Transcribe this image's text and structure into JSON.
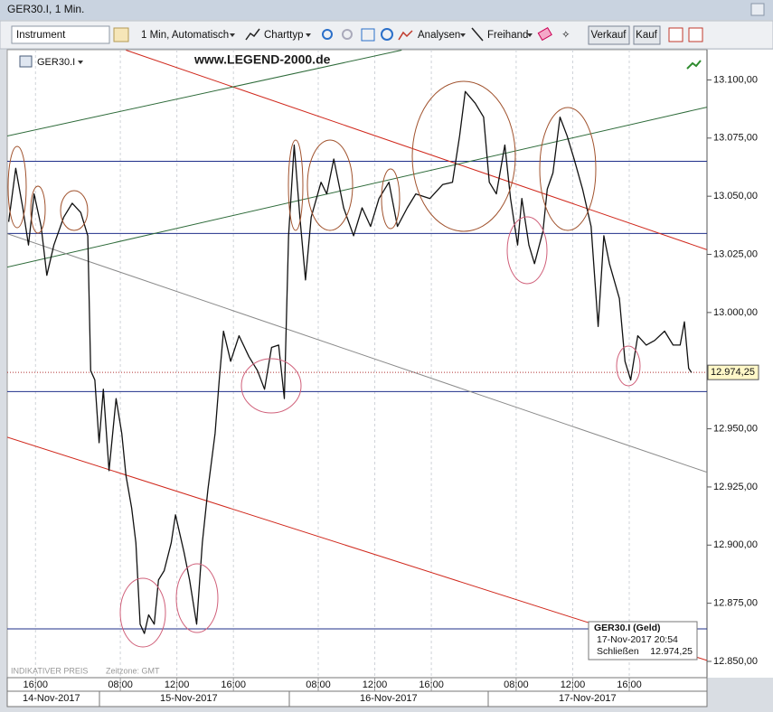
{
  "window_title": "GER30.I, 1 Min.",
  "toolbar": {
    "instrument": "Instrument",
    "interval": "1 Min,  Automatisch",
    "chart_type": "Charttyp",
    "analyses": "Analysen",
    "freehand": "Freihand",
    "sell": "Verkauf",
    "buy": "Kauf"
  },
  "chart_data": {
    "type": "line",
    "watermark": "www.LEGEND-2000.de",
    "footer_left": "INDIKATIVER PREIS",
    "timezone": "Zeitzone: GMT",
    "x": [
      6.1,
      6.6,
      7.1,
      7.5,
      7.9,
      8.4,
      8.8,
      9.3,
      10.0,
      10.6,
      11.2,
      11.7,
      11.9,
      12.2,
      12.5,
      12.8,
      13.2,
      13.7,
      14.1,
      14.4,
      14.8,
      15.1,
      15.4,
      15.7,
      16.0,
      16.4,
      16.7,
      17.1,
      17.6,
      17.9,
      18.5,
      18.9,
      19.4,
      19.8,
      20.2,
      20.7,
      21.0,
      21.3,
      21.8,
      22.4,
      23.1,
      23.7,
      24.2,
      24.7,
      25.2,
      25.6,
      25.9,
      26.3,
      26.7,
      27.1,
      27.5,
      28.2,
      28.6,
      29.1,
      29.8,
      30.5,
      31.1,
      31.7,
      32.3,
      33.0,
      33.6,
      34.3,
      34.9,
      35.9,
      36.8,
      37.5,
      38.0,
      38.4,
      39.1,
      39.7,
      40.1,
      40.6,
      41.2,
      41.6,
      42.1,
      42.4,
      42.9,
      43.3,
      43.9,
      44.2,
      44.6,
      45.1,
      45.6,
      46.1,
      46.7,
      47.3,
      47.8,
      48.2,
      48.6,
      49.3,
      49.7,
      50.1,
      50.6,
      51.2,
      51.8,
      52.5,
      53.1,
      53.6,
      53.9,
      54.2,
      54.4
    ],
    "series": [
      {
        "name": "GER30.I",
        "color": "#111111",
        "values": [
          13039,
          13062,
          13045,
          13029,
          13051,
          13037,
          13016,
          13029,
          13041,
          13047,
          13043,
          13033,
          12975,
          12971,
          12944,
          12967,
          12932,
          12963,
          12948,
          12930,
          12916,
          12901,
          12866,
          12862,
          12870,
          12866,
          12885,
          12889,
          12901,
          12913,
          12897,
          12885,
          12866,
          12901,
          12924,
          12948,
          12971,
          12992,
          12979,
          12990,
          12981,
          12975,
          12967,
          12985,
          12986,
          12963,
          13033,
          13072,
          13041,
          13014,
          13041,
          13056,
          13051,
          13066,
          13045,
          13033,
          13045,
          13037,
          13049,
          13056,
          13037,
          13045,
          13051,
          13049,
          13055,
          13056,
          13076,
          13095,
          13090,
          13084,
          13056,
          13051,
          13072,
          13049,
          13029,
          13049,
          13029,
          13021,
          13035,
          13053,
          13060,
          13084,
          13076,
          13066,
          13053,
          13037,
          12994,
          13033,
          13021,
          13006,
          12979,
          12971,
          12990,
          12986,
          12988,
          12992,
          12986,
          12986,
          12996,
          12976,
          12974.25
        ]
      }
    ],
    "xlim": [
      6,
      55.5
    ],
    "ylim": [
      12843,
      13113
    ],
    "xticks": [
      {
        "value": 8,
        "label": "16:00"
      },
      {
        "value": 14,
        "label": "08:00"
      },
      {
        "value": 18,
        "label": "12:00"
      },
      {
        "value": 22,
        "label": "16:00"
      },
      {
        "value": 28,
        "label": "08:00"
      },
      {
        "value": 32,
        "label": "12:00"
      },
      {
        "value": 36,
        "label": "16:00"
      },
      {
        "value": 42,
        "label": "08:00"
      },
      {
        "value": 46,
        "label": "12:00"
      },
      {
        "value": 50,
        "label": "16:00"
      }
    ],
    "yticks": [
      {
        "value": 12850,
        "label": "12.850,00"
      },
      {
        "value": 12875,
        "label": "12.875,00"
      },
      {
        "value": 12900,
        "label": "12.900,00"
      },
      {
        "value": 12925,
        "label": "12.925,00"
      },
      {
        "value": 12950,
        "label": "12.950,00"
      },
      {
        "value": 12975,
        "label": "12.975,00"
      },
      {
        "value": 13000,
        "label": "13.000,00"
      },
      {
        "value": 13025,
        "label": "13.025,00"
      },
      {
        "value": 13050,
        "label": "13.050,00"
      },
      {
        "value": 13075,
        "label": "13.075,00"
      },
      {
        "value": 13100,
        "label": "13.100,00"
      }
    ],
    "dates": [
      "14-Nov-2017",
      "15-Nov-2017",
      "16-Nov-2017",
      "17-Nov-2017"
    ],
    "grid": true,
    "levels": {
      "color": "#1f2f8a",
      "values": [
        13065,
        13034,
        12966,
        12864
      ]
    },
    "trendlines": [
      {
        "color": "#d0281c",
        "x": [
          14.4,
          55.5
        ],
        "y": [
          13112.8,
          13027
        ]
      },
      {
        "color": "#d0281c",
        "x": [
          6,
          55.5
        ],
        "y": [
          12946.4,
          12850.4
        ]
      },
      {
        "color": "#2e6b3a",
        "x": [
          6,
          33.9
        ],
        "y": [
          13075.9,
          13112.8
        ]
      },
      {
        "color": "#2e6b3a",
        "x": [
          6,
          55.5
        ],
        "y": [
          13019.5,
          13088.3
        ]
      },
      {
        "color": "#8a8a8a",
        "x": [
          6,
          55.5
        ],
        "y": [
          13033.9,
          12931.3
        ]
      }
    ],
    "last_price": {
      "value": 12974.25,
      "label": "12.974,25"
    },
    "info": {
      "title": "GER30.I (Geld)",
      "time": "17-Nov-2017 20:54",
      "close_label": "Schließen"
    }
  }
}
